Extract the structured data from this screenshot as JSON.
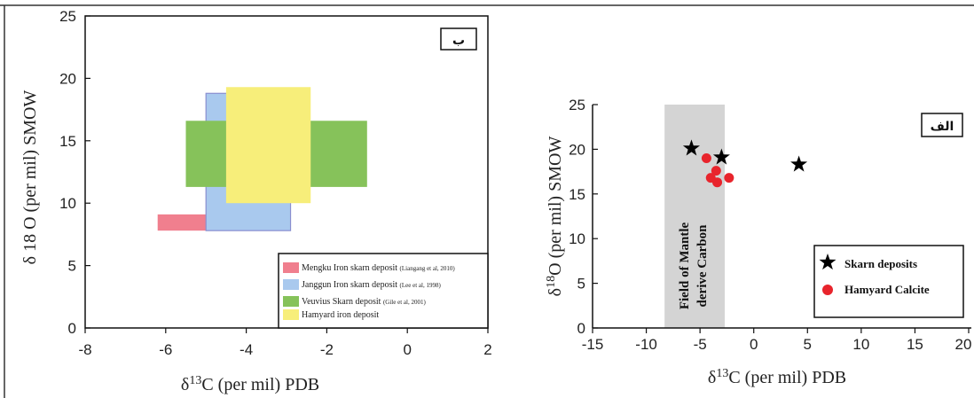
{
  "chart_data": [
    {
      "type": "area",
      "panel_label": "ب",
      "xlabel_prefix": "δ",
      "xlabel_sup": "13",
      "xlabel_rest": "C (per mil) PDB",
      "ylabel": "δ 18 O (per mil) SMOW",
      "xlim": [
        -8,
        2
      ],
      "ylim": [
        0,
        25
      ],
      "xticks": [
        "-8",
        "-6",
        "-4",
        "-2",
        "0",
        "2"
      ],
      "yticks": [
        "0",
        "5",
        "10",
        "15",
        "20",
        "25"
      ],
      "series": [
        {
          "name": "Mengku Iron skarn deposit",
          "ref": "(Liangang et al, 2010)",
          "color": "#f07f8e",
          "boxes": [
            [
              -6.2,
              -3.7,
              7.8,
              9.1
            ]
          ]
        },
        {
          "name": "Janggun Iron skarn deposit",
          "ref": "(Lee et al, 1998)",
          "color": "#a9c9ee",
          "boxes": [
            [
              -5.0,
              -2.9,
              7.8,
              18.8
            ]
          ]
        },
        {
          "name": "Veuvius Skarn deposit",
          "ref": "(Gile et al, 2001)",
          "color": "#86c25a",
          "boxes": [
            [
              -5.5,
              -1.0,
              11.3,
              16.6
            ]
          ]
        },
        {
          "name": "Hamyard iron deposit",
          "ref": "",
          "color": "#f7ee7a",
          "boxes": [
            [
              -4.5,
              -2.4,
              10.0,
              19.3
            ]
          ]
        }
      ]
    },
    {
      "type": "scatter",
      "panel_label": "الف",
      "xlabel_prefix": "δ",
      "xlabel_sup": "13",
      "xlabel_rest": "C (per mil) PDB",
      "ylabel_prefix": "δ",
      "ylabel_sup": "18",
      "ylabel_rest": "O (per mil) SMOW",
      "xlim": [
        -15,
        20
      ],
      "ylim": [
        0,
        25
      ],
      "xticks": [
        "-15",
        "-10",
        "-5",
        "0",
        "5",
        "10",
        "15",
        "20"
      ],
      "yticks": [
        "0",
        "5",
        "10",
        "15",
        "20",
        "25"
      ],
      "field": {
        "label_line1": "Field of Mantle",
        "label_line2": "derive Carbon",
        "x_range": [
          -8.3,
          -2.7
        ],
        "color": "#d4d4d4"
      },
      "series": [
        {
          "name": "Skarn deposits",
          "marker": "star",
          "color": "#000000",
          "x": [
            -5.8,
            -3.0,
            4.2
          ],
          "y": [
            20.1,
            19.1,
            18.3
          ]
        },
        {
          "name": "Hamyard Calcite",
          "marker": "circle",
          "color": "#e8242c",
          "x": [
            -4.4,
            -3.5,
            -4.0,
            -3.4,
            -2.3
          ],
          "y": [
            19.0,
            17.6,
            16.8,
            16.3,
            16.8
          ]
        }
      ]
    }
  ]
}
